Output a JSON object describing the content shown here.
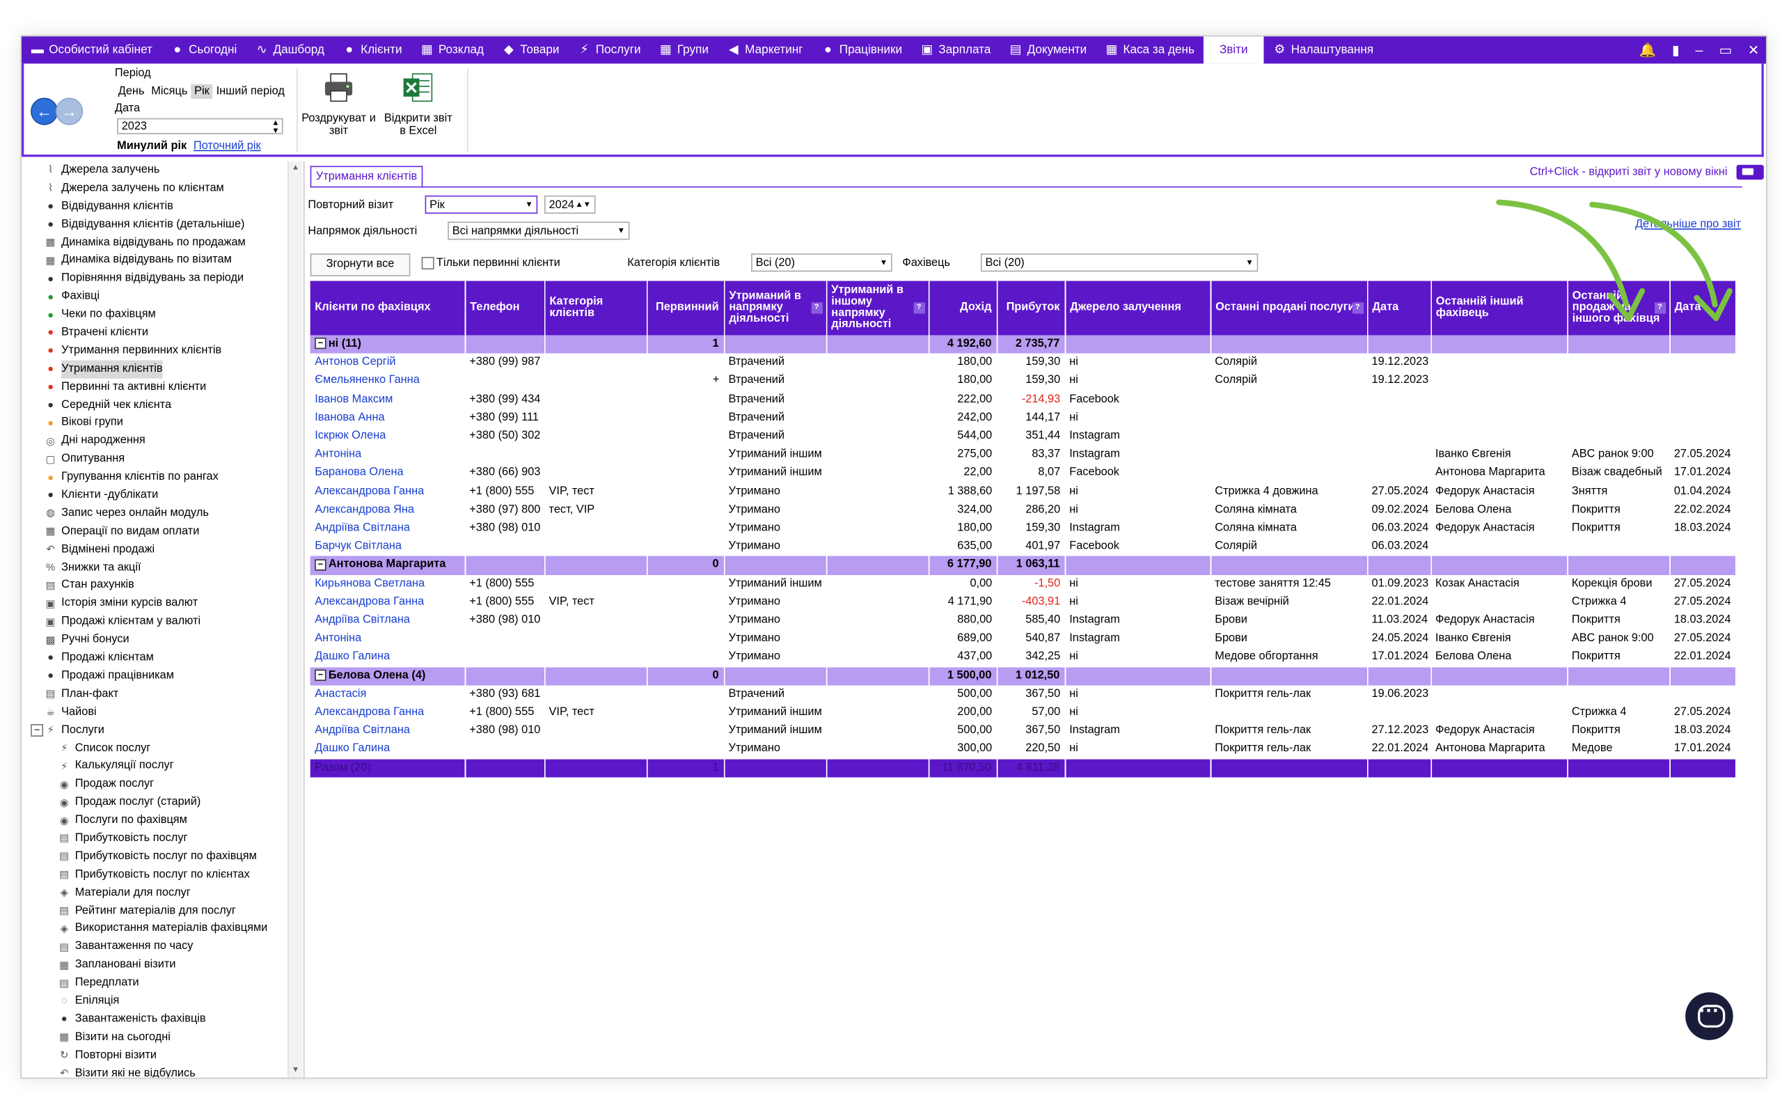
{
  "nav": {
    "items": [
      {
        "label": "Особистий кабінет",
        "icon": "briefcase-icon",
        "glyph": "▬"
      },
      {
        "label": "Сьогодні",
        "icon": "circle-icon",
        "glyph": "●"
      },
      {
        "label": "Дашборд",
        "icon": "pulse-icon",
        "glyph": "∿"
      },
      {
        "label": "Клієнти",
        "icon": "user-icon",
        "glyph": "●"
      },
      {
        "label": "Розклад",
        "icon": "calendar-icon",
        "glyph": "▦"
      },
      {
        "label": "Товари",
        "icon": "box-icon",
        "glyph": "◆"
      },
      {
        "label": "Послуги",
        "icon": "lightning-icon",
        "glyph": "⚡"
      },
      {
        "label": "Групи",
        "icon": "grid-icon",
        "glyph": "▦"
      },
      {
        "label": "Маркетинг",
        "icon": "megaphone-icon",
        "glyph": "◀"
      },
      {
        "label": "Працівники",
        "icon": "person-icon",
        "glyph": "●"
      },
      {
        "label": "Зарплата",
        "icon": "money-icon",
        "glyph": "▣"
      },
      {
        "label": "Документи",
        "icon": "document-icon",
        "glyph": "▤"
      },
      {
        "label": "Каса за день",
        "icon": "calculator-icon",
        "glyph": "▦"
      },
      {
        "label": "Звіти",
        "icon": "",
        "glyph": ""
      },
      {
        "label": "Налаштування",
        "icon": "gear-icon",
        "glyph": "⚙"
      }
    ],
    "right_icons": [
      "bell-icon",
      "lock-icon",
      "minimize-icon",
      "restore-icon",
      "close-icon"
    ]
  },
  "ribbon": {
    "period_label": "Період",
    "period_options": [
      "День",
      "Місяць",
      "Рік",
      "Інший період"
    ],
    "period_selected": "Рік",
    "date_label": "Дата",
    "year": "2023",
    "prev_year": "Минулий рік",
    "current_year": "Поточний рік",
    "print_label": "Роздрукуват и звіт",
    "excel_label": "Відкрити звіт в Excel"
  },
  "tree": [
    {
      "label": "Джерела залучень",
      "icon": "chart-icon",
      "indent": 0
    },
    {
      "label": "Джерела залучень по клієнтам",
      "icon": "chart-icon",
      "indent": 0
    },
    {
      "label": "Відвідування клієнтів",
      "icon": "person-icon",
      "indent": 0
    },
    {
      "label": "Відвідування клієнтів (детальніше)",
      "icon": "person-icon",
      "indent": 0
    },
    {
      "label": "Динаміка відвідувань по продажам",
      "icon": "calendar-icon",
      "indent": 0
    },
    {
      "label": "Динаміка відвідувань по візитам",
      "icon": "calendar-icon",
      "indent": 0
    },
    {
      "label": "Порівняння відвідувань за періоди",
      "icon": "person-icon",
      "indent": 0
    },
    {
      "label": "Фахівці",
      "icon": "person-green-icon",
      "indent": 0
    },
    {
      "label": "Чеки по фахівцям",
      "icon": "person-green-icon",
      "indent": 0
    },
    {
      "label": "Втрачені клієнти",
      "icon": "person-red-icon",
      "indent": 0
    },
    {
      "label": "Утримання первинних клієнтів",
      "icon": "person-red-icon",
      "indent": 0
    },
    {
      "label": "Утримання клієнтів",
      "icon": "person-red-icon",
      "indent": 0,
      "selected": true
    },
    {
      "label": "Первинні та активні клієнти",
      "icon": "person-red-icon",
      "indent": 0
    },
    {
      "label": "Середній чек клієнта",
      "icon": "person-icon",
      "indent": 0
    },
    {
      "label": "Вікові групи",
      "icon": "person-orange-icon",
      "indent": 0
    },
    {
      "label": "Дні народження",
      "icon": "cake-icon",
      "indent": 0
    },
    {
      "label": "Опитування",
      "icon": "survey-icon",
      "indent": 0
    },
    {
      "label": "Групування клієнтів по рангах",
      "icon": "person-orange-icon",
      "indent": 0
    },
    {
      "label": "Клієнти -дублікати",
      "icon": "person-icon",
      "indent": 0
    },
    {
      "label": "Запис через онлайн модуль",
      "icon": "globe-icon",
      "indent": 0
    },
    {
      "label": "Операції по видам оплати",
      "icon": "calculator-icon",
      "indent": 0
    },
    {
      "label": "Відмінені продажі",
      "icon": "undo-icon",
      "indent": 0
    },
    {
      "label": "Знижки та акції",
      "icon": "percent-icon",
      "indent": 0
    },
    {
      "label": "Стан рахунків",
      "icon": "document-icon",
      "indent": 0
    },
    {
      "label": "Історія зміни курсів валют",
      "icon": "money-icon",
      "indent": 0
    },
    {
      "label": "Продажі клієнтам у валюті",
      "icon": "money-icon",
      "indent": 0
    },
    {
      "label": "Ручні бонуси",
      "icon": "bonus-icon",
      "indent": 0
    },
    {
      "label": "Продажі клієнтам",
      "icon": "person-icon",
      "indent": 0
    },
    {
      "label": "Продажі працівникам",
      "icon": "person-icon",
      "indent": 0
    },
    {
      "label": "План-факт",
      "icon": "document-icon",
      "indent": 0
    },
    {
      "label": "Чайові",
      "icon": "tips-icon",
      "indent": 0
    },
    {
      "label": "Послуги",
      "icon": "lightning-icon",
      "indent": 0,
      "expander": "−"
    },
    {
      "label": "Список послуг",
      "icon": "lightning-icon",
      "indent": 1
    },
    {
      "label": "Калькуляції послуг",
      "icon": "lightning-icon",
      "indent": 1
    },
    {
      "label": "Продаж послуг",
      "icon": "sale-icon",
      "indent": 1
    },
    {
      "label": "Продаж послуг (старий)",
      "icon": "sale-icon",
      "indent": 1
    },
    {
      "label": "Послуги по фахівцям",
      "icon": "sale-icon",
      "indent": 1
    },
    {
      "label": "Прибутковість послуг",
      "icon": "document-icon",
      "indent": 1
    },
    {
      "label": "Прибутковість послуг по фахівцям",
      "icon": "document-icon",
      "indent": 1
    },
    {
      "label": "Прибутковість послуг по клієнтах",
      "icon": "document-icon",
      "indent": 1
    },
    {
      "label": "Матеріали для послуг",
      "icon": "materials-icon",
      "indent": 1
    },
    {
      "label": "Рейтинг матеріалів для послуг",
      "icon": "document-icon",
      "indent": 1
    },
    {
      "label": "Використання матеріалів фахівцями",
      "icon": "materials-icon",
      "indent": 1
    },
    {
      "label": "Завантаження по часу",
      "icon": "document-icon",
      "indent": 1
    },
    {
      "label": "Заплановані візити",
      "icon": "calendar-icon",
      "indent": 1
    },
    {
      "label": "Передплати",
      "icon": "document-icon",
      "indent": 1
    },
    {
      "label": "Епіляція",
      "icon": "epilation-icon",
      "indent": 1
    },
    {
      "label": "Завантаженість фахівців",
      "icon": "person-icon",
      "indent": 1
    },
    {
      "label": "Візити на сьогодні",
      "icon": "calendar-icon",
      "indent": 1
    },
    {
      "label": "Повторні візити",
      "icon": "repeat-icon",
      "indent": 1
    },
    {
      "label": "Візити які не відбулись",
      "icon": "undo-icon",
      "indent": 1
    }
  ],
  "report": {
    "tab": "Утримання клієнтів",
    "hint": "Ctrl+Click - відкриті звіт у новому вікні",
    "detail_link": "Детальніше про звіт",
    "repeat_visit_label": "Повторний візит",
    "repeat_visit_value": "Рік",
    "year_value": "2024",
    "direction_label": "Напрямок діяльності",
    "direction_value": "Всі напрямки діяльності",
    "collapse_all": "Згорнути все",
    "primary_only": "Тільки первинні клієнти",
    "category_label": "Категорія клієнтів",
    "category_value": "Всі (20)",
    "specialist_label": "Фахівець",
    "specialist_value": "Всі (20)"
  },
  "columns": [
    {
      "label": "Клієнти по фахівцях",
      "w": 136
    },
    {
      "label": "Телефон",
      "w": 70
    },
    {
      "label": "Категорія клієнтів",
      "w": 90
    },
    {
      "label": "Первинний",
      "w": 68,
      "num": true
    },
    {
      "label": "Утриманий в напрямку діяльності",
      "w": 90,
      "q": true
    },
    {
      "label": "Утриманий в іншому напрямку діяльності",
      "w": 90,
      "q": true
    },
    {
      "label": "Дохід",
      "w": 60,
      "num": true
    },
    {
      "label": "Прибуток",
      "w": 60,
      "num": true
    },
    {
      "label": "Джерело залучення",
      "w": 128
    },
    {
      "label": "Останні продані послуги",
      "w": 138,
      "q": true
    },
    {
      "label": "Дата",
      "w": 56
    },
    {
      "label": "Останній інший фахівець",
      "w": 120
    },
    {
      "label": "Останній продаж на іншого фахівця",
      "w": 90,
      "q": true
    },
    {
      "label": "Дата",
      "w": 58
    }
  ],
  "groups": [
    {
      "title": "ні (11)",
      "primary": "1",
      "income": "4 192,60",
      "profit": "2 735,77",
      "rows": [
        [
          "Антонов Сергій",
          "+380 (99) 987",
          "",
          "",
          "Втрачений",
          "",
          "180,00",
          "159,30",
          "ні",
          "Солярій",
          "19.12.2023",
          "",
          "",
          ""
        ],
        [
          "Ємельяненко Ганна",
          "",
          "",
          "+",
          "Втрачений",
          "",
          "180,00",
          "159,30",
          "ні",
          "Солярій",
          "19.12.2023",
          "",
          "",
          ""
        ],
        [
          "Іванов Максим",
          "+380 (99) 434",
          "",
          "",
          "Втрачений",
          "",
          "222,00",
          "-214,93",
          "Facebook",
          "",
          "",
          "",
          "",
          ""
        ],
        [
          "Іванова Анна",
          "+380 (99) 111",
          "",
          "",
          "Втрачений",
          "",
          "242,00",
          "144,17",
          "ні",
          "",
          "",
          "",
          "",
          ""
        ],
        [
          "Іскрюк Олена",
          "+380 (50) 302",
          "",
          "",
          "Втрачений",
          "",
          "544,00",
          "351,44",
          "Instagram",
          "",
          "",
          "",
          "",
          ""
        ],
        [
          "Антоніна",
          "",
          "",
          "",
          "Утриманий іншим",
          "",
          "275,00",
          "83,37",
          "Instagram",
          "",
          "",
          "Іванко Євгенія",
          "ABC ранок 9:00",
          "27.05.2024"
        ],
        [
          "Баранова Олена",
          "+380 (66) 903",
          "",
          "",
          "Утриманий іншим",
          "",
          "22,00",
          "8,07",
          "Facebook",
          "",
          "",
          "Антонова Маргарита",
          "Візаж свадебный",
          "17.01.2024"
        ],
        [
          "Александрова Ганна",
          "+1 (800) 555",
          "VIP, тест",
          "",
          "Утримано",
          "",
          "1 388,60",
          "1 197,58",
          "ні",
          "Стрижка 4 довжина",
          "27.05.2024",
          "Федорук Анастасія",
          "Зняття",
          "01.04.2024"
        ],
        [
          "Александрова Яна",
          "+380 (97) 800",
          "тест, VIP",
          "",
          "Утримано",
          "",
          "324,00",
          "286,20",
          "ні",
          "Соляна кімната",
          "09.02.2024",
          "Белова Олена",
          "Покриття",
          "22.02.2024"
        ],
        [
          "Андріїва Світлана",
          "+380 (98) 010",
          "",
          "",
          "Утримано",
          "",
          "180,00",
          "159,30",
          "Instagram",
          "Соляна кімната",
          "06.03.2024",
          "Федорук Анастасія",
          "Покриття",
          "18.03.2024"
        ],
        [
          "Барчук Світлана",
          "",
          "",
          "",
          "Утримано",
          "",
          "635,00",
          "401,97",
          "Facebook",
          "Солярій",
          "06.03.2024",
          "",
          "",
          ""
        ]
      ]
    },
    {
      "title": "Антонова Маргарита",
      "primary": "0",
      "income": "6 177,90",
      "profit": "1 063,11",
      "rows": [
        [
          "Кирьянова Светлана",
          "+1 (800) 555",
          "",
          "",
          "Утриманий іншим",
          "",
          "0,00",
          "-1,50",
          "ні",
          "тестове заняття 12:45",
          "01.09.2023",
          "Козак Анастасія",
          "Корекція брови",
          "27.05.2024"
        ],
        [
          "Александрова Ганна",
          "+1 (800) 555",
          "VIP, тест",
          "",
          "Утримано",
          "",
          "4 171,90",
          "-403,91",
          "ні",
          "Візаж вечірній",
          "22.01.2024",
          "",
          "Стрижка 4",
          "27.05.2024"
        ],
        [
          "Андріїва Світлана",
          "+380 (98) 010",
          "",
          "",
          "Утримано",
          "",
          "880,00",
          "585,40",
          "Instagram",
          "Брови",
          "11.03.2024",
          "Федорук Анастасія",
          "Покриття",
          "18.03.2024"
        ],
        [
          "Антоніна",
          "",
          "",
          "",
          "Утримано",
          "",
          "689,00",
          "540,87",
          "Instagram",
          "Брови",
          "24.05.2024",
          "Іванко Євгенія",
          "ABC ранок 9:00",
          "27.05.2024"
        ],
        [
          "Дашко Галина",
          "",
          "",
          "",
          "Утримано",
          "",
          "437,00",
          "342,25",
          "ні",
          "Медове обгортання",
          "17.01.2024",
          "Белова Олена",
          "Покриття",
          "22.01.2024"
        ]
      ]
    },
    {
      "title": "Белова Олена (4)",
      "primary": "0",
      "income": "1 500,00",
      "profit": "1 012,50",
      "rows": [
        [
          "Анастасія",
          "+380 (93) 681",
          "",
          "",
          "Втрачений",
          "",
          "500,00",
          "367,50",
          "ні",
          "Покриття гель-лак",
          "19.06.2023",
          "",
          "",
          ""
        ],
        [
          "Александрова Ганна",
          "+1 (800) 555",
          "VIP, тест",
          "",
          "Утриманий іншим",
          "",
          "200,00",
          "57,00",
          "ні",
          "",
          "",
          "",
          "Стрижка 4",
          "27.05.2024"
        ],
        [
          "Андріїва Світлана",
          "+380 (98) 010",
          "",
          "",
          "Утриманий іншим",
          "",
          "500,00",
          "367,50",
          "Instagram",
          "Покриття гель-лак",
          "27.12.2023",
          "Федорук Анастасія",
          "Покриття",
          "18.03.2024"
        ],
        [
          "Дашко Галина",
          "",
          "",
          "",
          "Утримано",
          "",
          "300,00",
          "220,50",
          "ні",
          "Покриття гель-лак",
          "22.01.2024",
          "Антонова Маргарита",
          "Медове",
          "17.01.2024"
        ]
      ]
    }
  ],
  "total": {
    "title": "Разом (20)",
    "primary": "1",
    "income": "11 870,50",
    "profit": "4 811,38"
  },
  "colors": {
    "accent": "#5c17c9",
    "group_row": "#b79cf2",
    "link": "#1a3fd0",
    "negative": "#e0231a",
    "arrows": "#7cc242"
  }
}
